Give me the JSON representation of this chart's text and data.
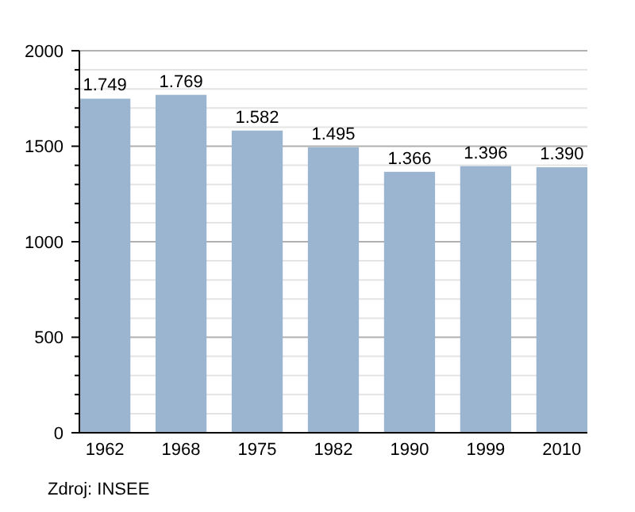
{
  "chart_data": {
    "type": "bar",
    "categories": [
      "1962",
      "1968",
      "1975",
      "1982",
      "1990",
      "1999",
      "2010"
    ],
    "values": [
      1749,
      1769,
      1582,
      1495,
      1366,
      1396,
      1390
    ],
    "value_labels": [
      "1.749",
      "1.769",
      "1.582",
      "1.495",
      "1.366",
      "1.396",
      "1.390"
    ],
    "color": "#9bb4cf",
    "ylim": [
      0,
      2000
    ],
    "yticks": [
      0,
      {
        "value": 100,
        "label": null
      },
      {
        "value": 200,
        "label": null
      },
      {
        "value": 300,
        "label": null
      },
      {
        "value": 400,
        "label": null
      },
      500,
      {
        "value": 600,
        "label": null
      },
      {
        "value": 700,
        "label": null
      },
      {
        "value": 800,
        "label": null
      },
      {
        "value": 900,
        "label": null
      },
      1000,
      {
        "value": 1100,
        "label": null
      },
      {
        "value": 1200,
        "label": null
      },
      {
        "value": 1300,
        "label": null
      },
      {
        "value": 1400,
        "label": null
      },
      1500,
      {
        "value": 1600,
        "label": null
      },
      {
        "value": 1700,
        "label": null
      },
      {
        "value": 1800,
        "label": null
      },
      {
        "value": 1900,
        "label": null
      },
      2000
    ],
    "grid": true,
    "annotations": [
      "Zdroj: INSEE"
    ]
  }
}
